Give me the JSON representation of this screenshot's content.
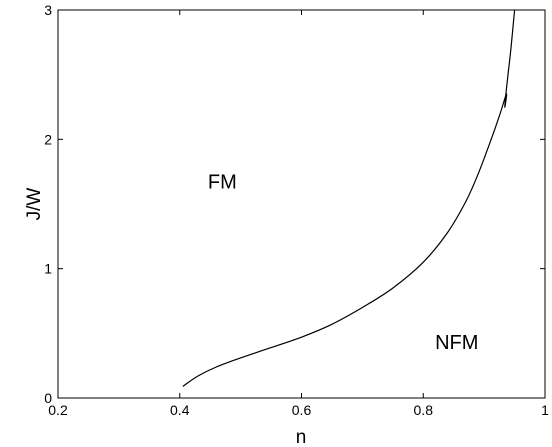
{
  "chart_data": {
    "type": "line",
    "title": "",
    "xlabel": "n",
    "ylabel": "J/W",
    "xlim": [
      0.2,
      1
    ],
    "ylim": [
      0,
      3
    ],
    "xticks": [
      0.2,
      0.4,
      0.6,
      0.8,
      1
    ],
    "yticks": [
      0,
      1,
      2,
      3
    ],
    "xtick_labels": [
      "0.2",
      "0.4",
      "0.6",
      "0.8",
      "1"
    ],
    "ytick_labels": [
      "0",
      "1",
      "2",
      "3"
    ],
    "grid": false,
    "annotations": [
      {
        "text": "FM",
        "x": 0.47,
        "y": 1.62
      },
      {
        "text": "NFM",
        "x": 0.855,
        "y": 0.38
      }
    ],
    "series": [
      {
        "color": "#000000",
        "x": [
          0.405,
          0.43,
          0.46,
          0.5,
          0.55,
          0.6,
          0.65,
          0.7,
          0.75,
          0.8,
          0.84,
          0.87,
          0.89,
          0.91,
          0.925,
          0.933,
          0.937,
          0.934,
          0.938,
          0.944,
          0.95
        ],
        "y": [
          0.09,
          0.17,
          0.24,
          0.31,
          0.39,
          0.47,
          0.57,
          0.7,
          0.85,
          1.05,
          1.28,
          1.52,
          1.73,
          1.98,
          2.18,
          2.3,
          2.35,
          2.25,
          2.45,
          2.7,
          3.0
        ]
      }
    ]
  }
}
